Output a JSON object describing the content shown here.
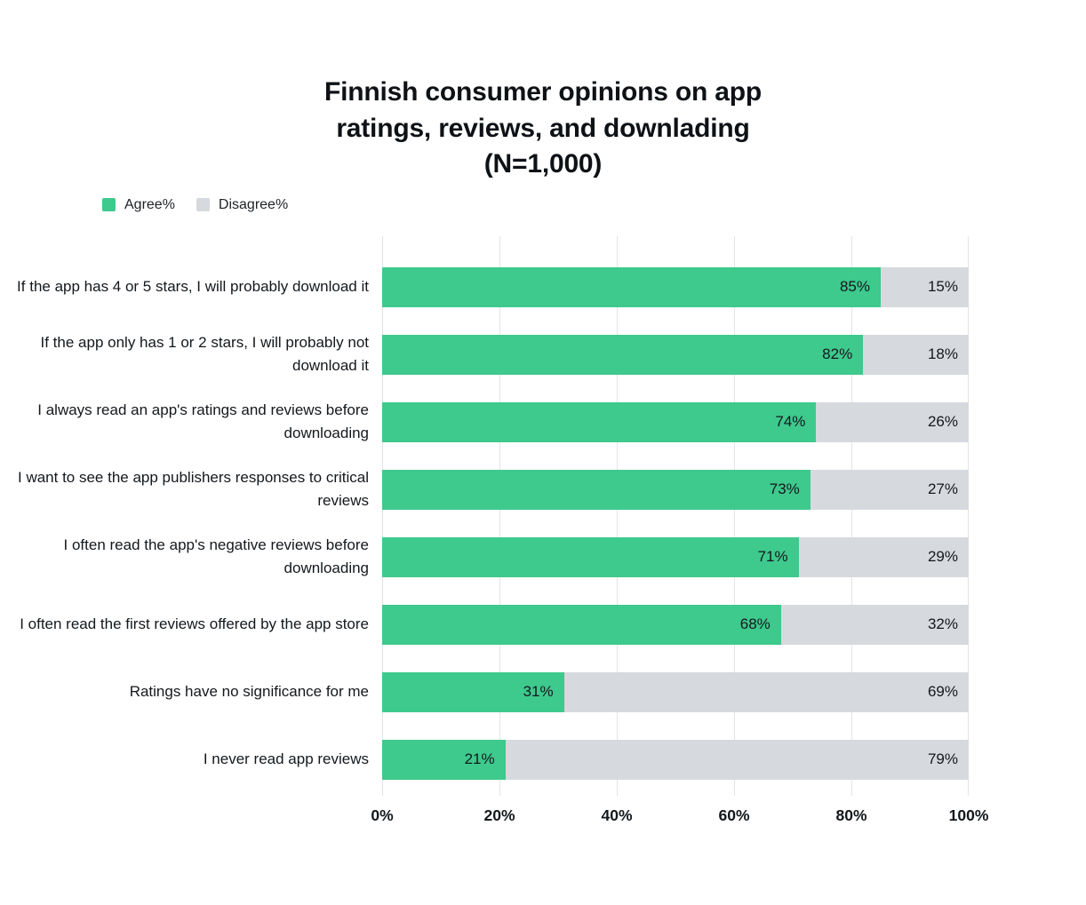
{
  "title": "Finnish consumer opinions on app\nratings, reviews, and downlading\n(N=1,000)",
  "legend": [
    {
      "label": "Agree%",
      "color": "#3ec98d"
    },
    {
      "label": "Disagree%",
      "color": "#d6d9dd"
    }
  ],
  "chart_data": {
    "type": "bar",
    "orientation": "horizontal",
    "stacked": true,
    "title": "Finnish consumer opinions on app ratings, reviews, and downlading (N=1,000)",
    "categories": [
      "If the app has 4 or 5 stars, I will probably download it",
      "If the app only has 1 or 2 stars, I will probably not download it",
      "I always read an app's ratings and reviews before downloading",
      "I want to see the app publishers responses to critical reviews",
      "I often read the app's negative reviews before downloading",
      "I often read the first reviews offered by the app store",
      "Ratings have no significance for me",
      "I never read app reviews"
    ],
    "series": [
      {
        "name": "Agree%",
        "color": "#3ec98d",
        "values": [
          85,
          82,
          74,
          73,
          71,
          68,
          31,
          21
        ]
      },
      {
        "name": "Disagree%",
        "color": "#d6d9dd",
        "values": [
          15,
          18,
          26,
          27,
          29,
          32,
          69,
          79
        ]
      }
    ],
    "x_ticks": [
      "0%",
      "20%",
      "40%",
      "60%",
      "80%",
      "100%"
    ],
    "xlim": [
      0,
      100
    ],
    "xlabel": "",
    "ylabel": "",
    "grid": "vertical",
    "legend_position": "top-left",
    "value_label_format": "inside-end, percent"
  }
}
